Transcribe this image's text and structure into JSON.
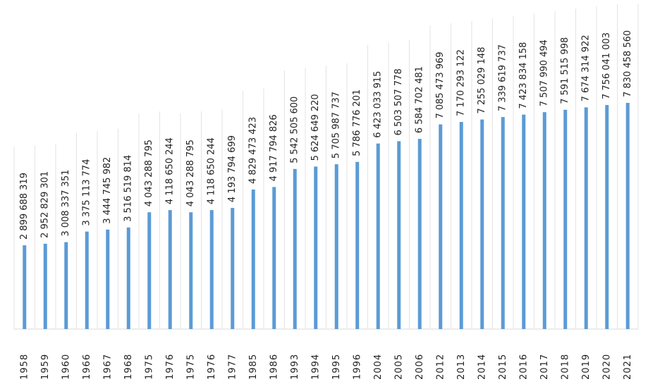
{
  "chart_data": {
    "type": "bar",
    "color": "#5b9bd5",
    "categories": [
      "1958",
      "1959",
      "1960",
      "1966",
      "1967",
      "1968",
      "1975",
      "1976",
      "1975",
      "1976",
      "1977",
      "1985",
      "1986",
      "1993",
      "1994",
      "1995",
      "1996",
      "2004",
      "2005",
      "2006",
      "2012",
      "2013",
      "2014",
      "2015",
      "2016",
      "2017",
      "2018",
      "2019",
      "2020",
      "2021"
    ],
    "values": [
      2899688319,
      2952829301,
      3008337351,
      3375113774,
      3444745982,
      3516519814,
      4043288795,
      4118650244,
      4043288795,
      4118650244,
      4193794699,
      4829473423,
      4917794826,
      5542505600,
      5624649220,
      5705987737,
      5786776201,
      6423033915,
      6503507778,
      6584702481,
      7085473969,
      7170293122,
      7255029148,
      7339619737,
      7423834158,
      7507990494,
      7591515998,
      7674314922,
      7756041003,
      7830458560
    ],
    "value_labels": [
      "2 899 688 319",
      "2 952 829 301",
      "3 008 337 351",
      "3 375 113 774",
      "3 444 745 982",
      "3 516 519 814",
      "4 043 288 795",
      "4 118 650 244",
      "4 043 288 795",
      "4 118 650 244",
      "4 193 794 699",
      "4 829 473 423",
      "4 917 794 826",
      "5 542 505 600",
      "5 624 649 220",
      "5 705 987 737",
      "5 786 776 201",
      "6 423 033 915",
      "6 503 507 778",
      "6 584 702 481",
      "7 085 473 969",
      "7 170 293 122",
      "7 255 029 148",
      "7 339 619 737",
      "7 423 834 158",
      "7 507 990 494",
      "7 591 515 998",
      "7 674 314 922",
      "7 756 041 003",
      "7 830 458 560"
    ]
  }
}
